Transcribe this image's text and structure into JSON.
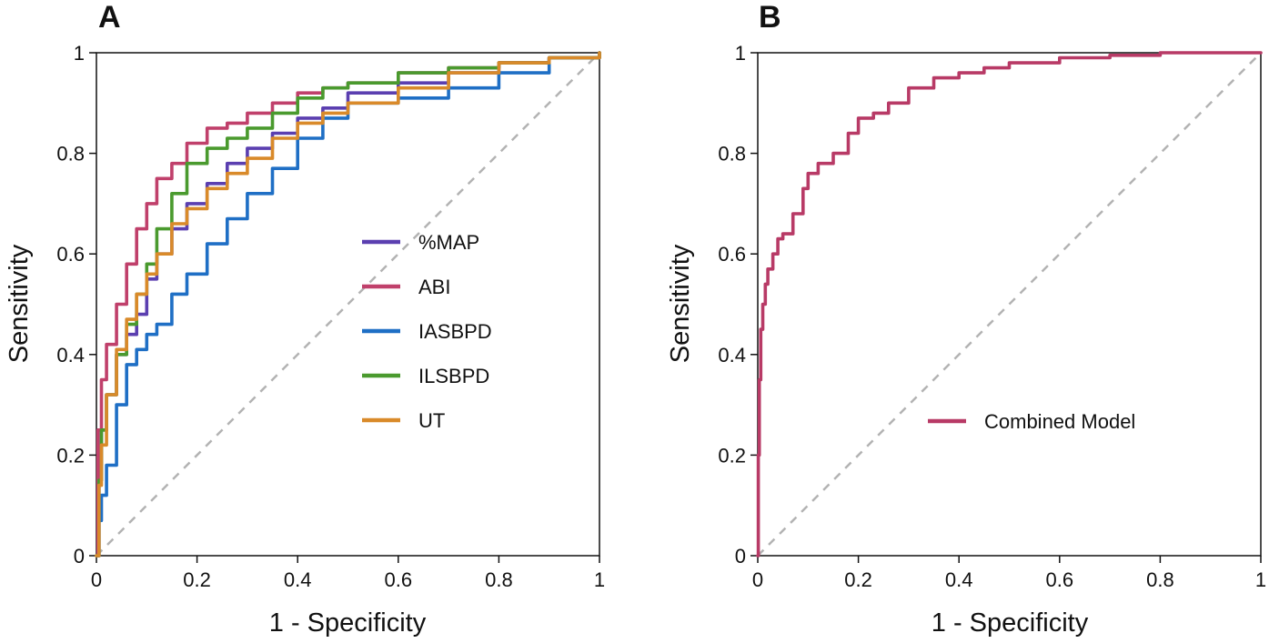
{
  "chart_data": [
    {
      "panel": "A",
      "type": "line",
      "title": "",
      "xlabel": "1 - Specificity",
      "ylabel": "Sensitivity",
      "xlim": [
        0,
        1
      ],
      "ylim": [
        0,
        1
      ],
      "xticks": [
        "0",
        "0.2",
        "0.4",
        "0.6",
        "0.8",
        "1"
      ],
      "yticks": [
        "0",
        "0.2",
        "0.4",
        "0.6",
        "0.8",
        "1"
      ],
      "reference_line": "diagonal dashed",
      "legend_position": "center-right",
      "series": [
        {
          "name": "%MAP",
          "color": "#5b3fb0",
          "x": [
            0,
            0.005,
            0.01,
            0.02,
            0.04,
            0.06,
            0.08,
            0.1,
            0.12,
            0.15,
            0.18,
            0.22,
            0.26,
            0.3,
            0.35,
            0.4,
            0.45,
            0.5,
            0.6,
            0.7,
            0.8,
            0.9,
            1
          ],
          "y": [
            0,
            0.15,
            0.25,
            0.32,
            0.4,
            0.44,
            0.48,
            0.55,
            0.6,
            0.65,
            0.7,
            0.74,
            0.78,
            0.81,
            0.84,
            0.87,
            0.89,
            0.92,
            0.94,
            0.96,
            0.98,
            0.99,
            1
          ]
        },
        {
          "name": "ABI",
          "color": "#c0406b",
          "x": [
            0,
            0.003,
            0.01,
            0.02,
            0.04,
            0.06,
            0.08,
            0.1,
            0.12,
            0.15,
            0.18,
            0.22,
            0.26,
            0.3,
            0.35,
            0.4,
            0.45,
            0.5,
            0.6,
            0.7,
            0.8,
            0.9,
            1
          ],
          "y": [
            0,
            0.25,
            0.35,
            0.42,
            0.5,
            0.58,
            0.65,
            0.7,
            0.75,
            0.78,
            0.82,
            0.85,
            0.86,
            0.88,
            0.9,
            0.92,
            0.93,
            0.94,
            0.96,
            0.97,
            0.98,
            0.99,
            1
          ]
        },
        {
          "name": "IASBPD",
          "color": "#1f6fc5",
          "x": [
            0,
            0.005,
            0.01,
            0.02,
            0.04,
            0.06,
            0.08,
            0.1,
            0.12,
            0.15,
            0.18,
            0.22,
            0.26,
            0.3,
            0.35,
            0.4,
            0.45,
            0.5,
            0.6,
            0.7,
            0.8,
            0.9,
            1
          ],
          "y": [
            0,
            0.07,
            0.12,
            0.18,
            0.3,
            0.38,
            0.41,
            0.44,
            0.46,
            0.52,
            0.56,
            0.62,
            0.67,
            0.72,
            0.77,
            0.83,
            0.87,
            0.9,
            0.91,
            0.93,
            0.96,
            0.99,
            1
          ]
        },
        {
          "name": "ILSBPD",
          "color": "#4a9a2e",
          "x": [
            0,
            0.005,
            0.01,
            0.02,
            0.04,
            0.06,
            0.08,
            0.1,
            0.12,
            0.15,
            0.18,
            0.22,
            0.26,
            0.3,
            0.35,
            0.4,
            0.45,
            0.5,
            0.6,
            0.7,
            0.8,
            0.9,
            1
          ],
          "y": [
            0,
            0.15,
            0.25,
            0.32,
            0.4,
            0.46,
            0.52,
            0.58,
            0.65,
            0.72,
            0.78,
            0.81,
            0.83,
            0.85,
            0.88,
            0.91,
            0.93,
            0.94,
            0.96,
            0.97,
            0.98,
            0.99,
            1
          ]
        },
        {
          "name": "UT",
          "color": "#d98a2a",
          "x": [
            0,
            0.005,
            0.01,
            0.02,
            0.04,
            0.06,
            0.08,
            0.1,
            0.12,
            0.15,
            0.18,
            0.22,
            0.26,
            0.3,
            0.35,
            0.4,
            0.45,
            0.5,
            0.6,
            0.7,
            0.8,
            0.9,
            1
          ],
          "y": [
            0,
            0.14,
            0.22,
            0.32,
            0.41,
            0.47,
            0.52,
            0.56,
            0.6,
            0.66,
            0.69,
            0.73,
            0.76,
            0.79,
            0.83,
            0.86,
            0.88,
            0.9,
            0.93,
            0.96,
            0.98,
            0.99,
            1
          ]
        }
      ]
    },
    {
      "panel": "B",
      "type": "line",
      "title": "",
      "xlabel": "1 - Specificity",
      "ylabel": "Sensitivity",
      "xlim": [
        0,
        1
      ],
      "ylim": [
        0,
        1
      ],
      "xticks": [
        "0",
        "0.2",
        "0.4",
        "0.6",
        "0.8",
        "1"
      ],
      "yticks": [
        "0",
        "0.2",
        "0.4",
        "0.6",
        "0.8",
        "1"
      ],
      "reference_line": "diagonal dashed",
      "legend_position": "center-right",
      "series": [
        {
          "name": "Combined Model",
          "color": "#b83a66",
          "x": [
            0,
            0.001,
            0.003,
            0.006,
            0.01,
            0.015,
            0.02,
            0.03,
            0.04,
            0.05,
            0.07,
            0.09,
            0.1,
            0.12,
            0.15,
            0.18,
            0.2,
            0.23,
            0.26,
            0.3,
            0.35,
            0.4,
            0.45,
            0.5,
            0.6,
            0.7,
            0.8,
            1
          ],
          "y": [
            0,
            0.2,
            0.35,
            0.45,
            0.5,
            0.54,
            0.57,
            0.6,
            0.63,
            0.64,
            0.68,
            0.73,
            0.76,
            0.78,
            0.8,
            0.84,
            0.87,
            0.88,
            0.9,
            0.93,
            0.95,
            0.96,
            0.97,
            0.98,
            0.99,
            0.995,
            1,
            1
          ]
        }
      ]
    }
  ]
}
